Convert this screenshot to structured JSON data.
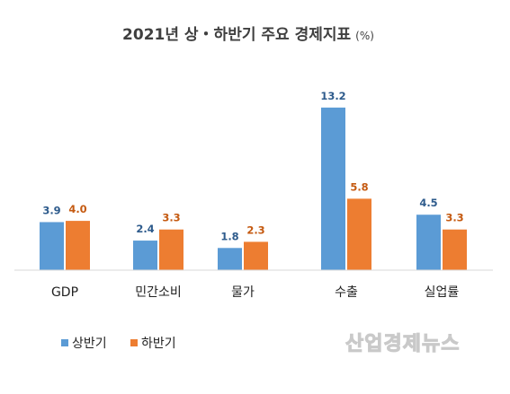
{
  "chart_data": {
    "type": "bar",
    "title": "2021년 상・하반기 주요 경제지표",
    "title_unit": "(%)",
    "categories": [
      "GDP",
      "민간소비",
      "물가",
      "수출",
      "실업률"
    ],
    "series": [
      {
        "name": "상반기",
        "values": [
          3.9,
          2.4,
          1.8,
          13.2,
          4.5
        ],
        "color": "#5b9bd5",
        "label_color": "#2e5b8c"
      },
      {
        "name": "하반기",
        "values": [
          4.0,
          3.3,
          2.3,
          5.8,
          3.3
        ],
        "color": "#ed7d31",
        "label_color": "#c55a11"
      }
    ],
    "value_labels": [
      [
        "3.9",
        "2.4",
        "1.8",
        "13.2",
        "4.5"
      ],
      [
        "4.0",
        "3.3",
        "2.3",
        "5.8",
        "3.3"
      ]
    ],
    "ylim": [
      0,
      14.5
    ],
    "grid": false,
    "legend_position": "bottom-left",
    "axis_color": "#d9d9d9"
  },
  "watermark": "산업경제뉴스"
}
